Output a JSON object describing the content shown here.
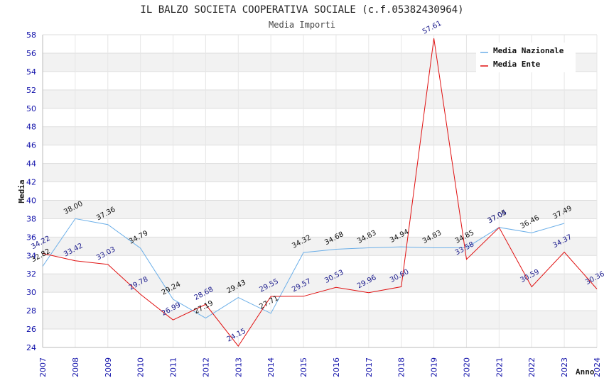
{
  "chart_data": {
    "type": "line",
    "title": "IL BALZO SOCIETA COOPERATIVA SOCIALE (c.f.05382430964)",
    "subtitle": "Media Importi",
    "xlabel": "Anno",
    "ylabel": "Media",
    "x": [
      "2007",
      "2008",
      "2009",
      "2010",
      "2011",
      "2012",
      "2013",
      "2014",
      "2015",
      "2016",
      "2017",
      "2018",
      "2019",
      "2020",
      "2021",
      "2022",
      "2023",
      "2024"
    ],
    "ylim": [
      24,
      58
    ],
    "yticks": [
      24,
      26,
      28,
      30,
      32,
      34,
      36,
      38,
      40,
      42,
      44,
      46,
      48,
      50,
      52,
      54,
      56,
      58
    ],
    "grid": true,
    "legend_position": "top-right",
    "series": [
      {
        "name": "Media Nazionale",
        "color": "#6aaee8",
        "values": [
          32.82,
          38.0,
          37.36,
          34.79,
          29.24,
          27.19,
          29.43,
          27.71,
          34.32,
          34.68,
          34.83,
          34.94,
          34.83,
          34.85,
          37.05,
          36.46,
          37.49,
          null
        ],
        "labels": [
          "32.82",
          "38.00",
          "37.36",
          "34.79",
          "29.24",
          "27.19",
          "29.43",
          "27.71",
          "34.32",
          "34.68",
          "34.83",
          "34.94",
          "34.83",
          "34.85",
          "37.05",
          "36.46",
          "37.49",
          ""
        ]
      },
      {
        "name": "Media Ente",
        "color": "#e01010",
        "values": [
          34.22,
          33.42,
          33.03,
          29.78,
          26.99,
          28.68,
          24.15,
          29.55,
          29.57,
          30.53,
          29.96,
          30.6,
          57.61,
          33.58,
          37.04,
          30.59,
          34.37,
          30.36
        ],
        "labels": [
          "34.22",
          "33.42",
          "33.03",
          "29.78",
          "26.99",
          "28.68",
          "24.15",
          "29.55",
          "29.57",
          "30.53",
          "29.96",
          "30.60",
          "57.61",
          "33.58",
          "37.04",
          "30.59",
          "34.37",
          "30.36"
        ]
      }
    ]
  }
}
